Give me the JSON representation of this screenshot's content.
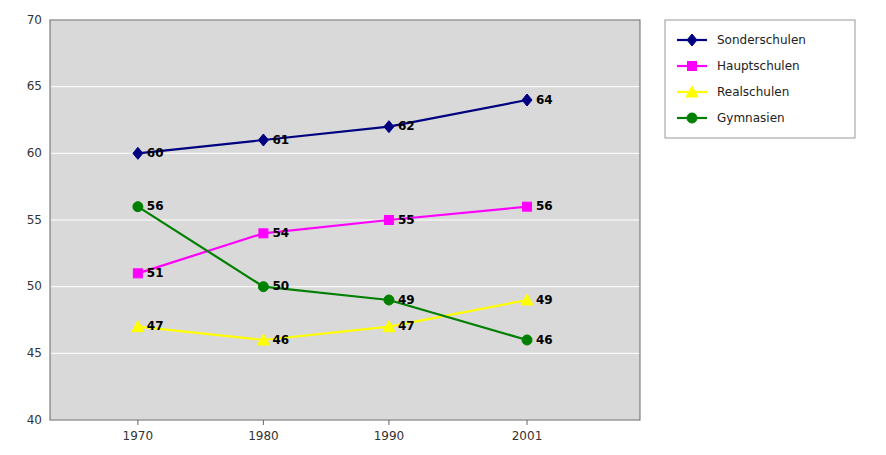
{
  "chart_data": {
    "type": "line",
    "x": [
      1970,
      1980,
      1990,
      2001
    ],
    "series": [
      {
        "name": "Sonderschulen",
        "color": "#000080",
        "marker": "diamond",
        "values": [
          60,
          61,
          62,
          64
        ]
      },
      {
        "name": "Hauptschulen",
        "color": "#FF00FF",
        "marker": "square",
        "values": [
          51,
          54,
          55,
          56
        ]
      },
      {
        "name": "Realschulen",
        "color": "#FFFF00",
        "marker": "triangle",
        "values": [
          47,
          46,
          47,
          49
        ]
      },
      {
        "name": "Gymnasien",
        "color": "#008000",
        "marker": "circle",
        "values": [
          56,
          50,
          49,
          46
        ]
      }
    ],
    "xlim": [
      1963,
      2010
    ],
    "xticks": [
      1970,
      1980,
      1990,
      2001
    ],
    "ylim": [
      40,
      70
    ],
    "yticks": [
      40,
      45,
      50,
      55,
      60,
      65,
      70
    ],
    "grid": true,
    "legend": "right",
    "data_labels": true
  }
}
